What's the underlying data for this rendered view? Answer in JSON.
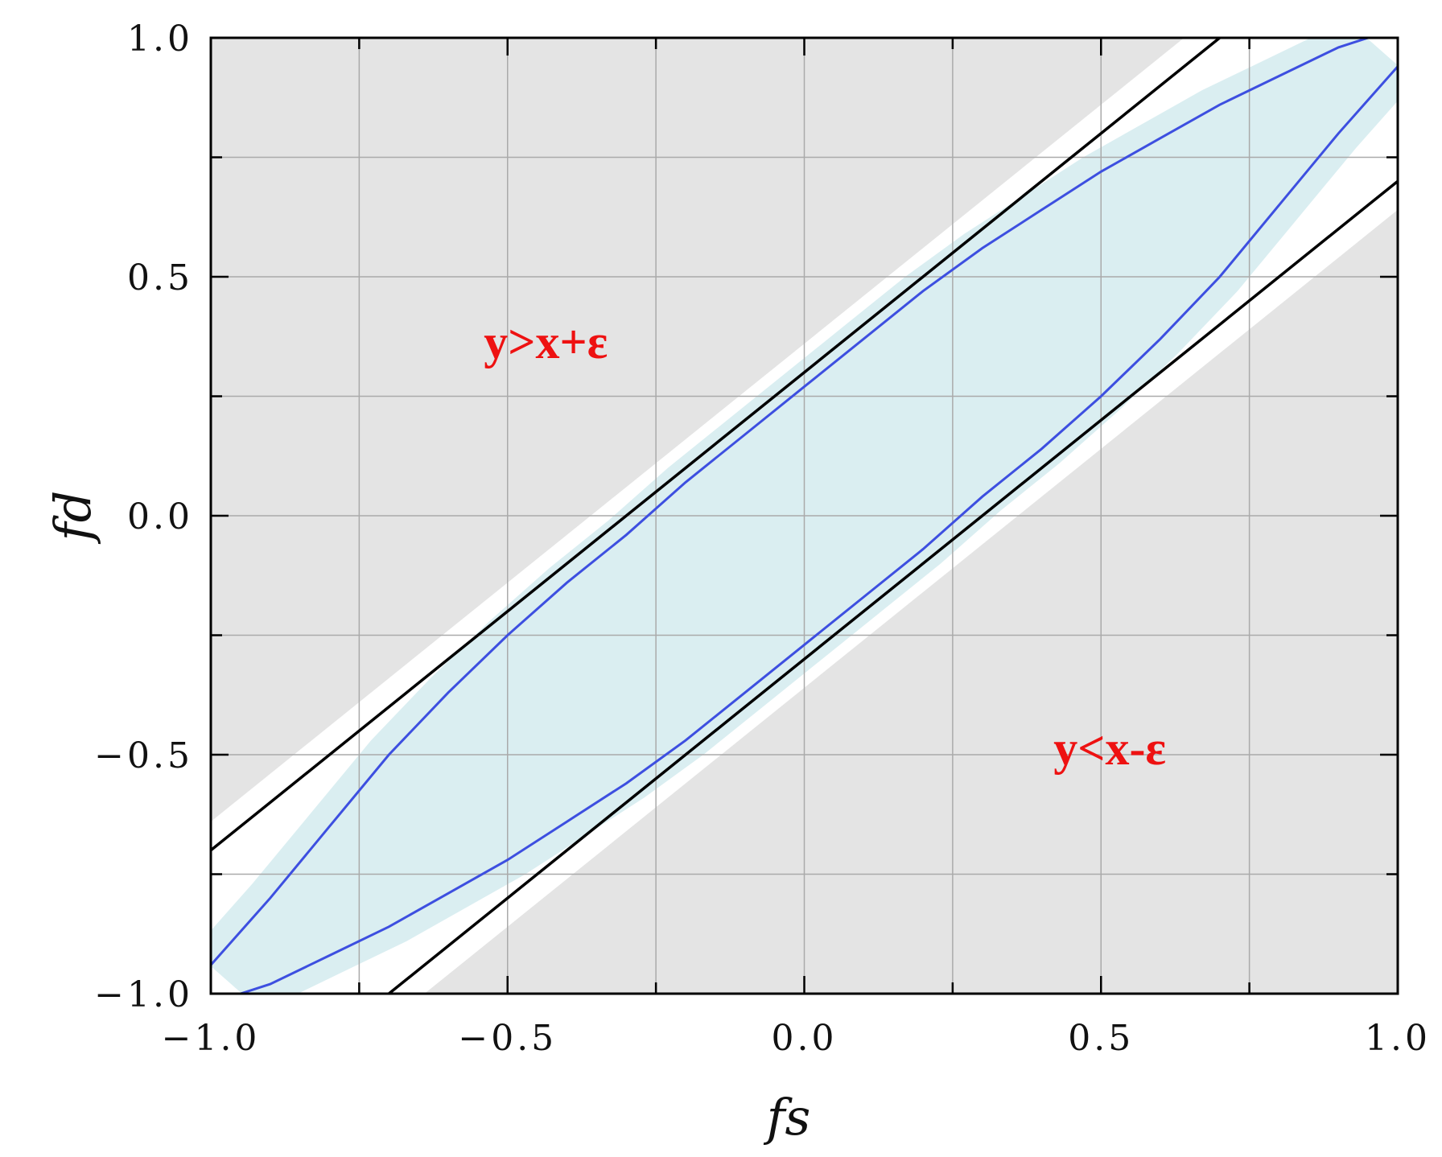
{
  "chart_data": {
    "type": "line",
    "title": "",
    "xlabel": "fs",
    "ylabel": "fd",
    "xlim": [
      -1.0,
      1.0
    ],
    "ylim": [
      -1.0,
      1.0
    ],
    "x_ticks": [
      -1.0,
      -0.5,
      0.0,
      0.5,
      1.0
    ],
    "y_ticks": [
      -1.0,
      -0.5,
      0.0,
      0.5,
      1.0
    ],
    "x_tick_labels": [
      "−1.0",
      "−0.5",
      "0.0",
      "0.5",
      "1.0"
    ],
    "y_tick_labels": [
      "−1.0",
      "−0.5",
      "0.0",
      "0.5",
      "1.0"
    ],
    "minor_grid_step": 0.25,
    "grid": true,
    "legend": "none",
    "epsilon": 0.3,
    "boundary_lines": [
      {
        "equation": "y = x + ε",
        "intercept": 0.3,
        "color": "#000000"
      },
      {
        "equation": "y = x − ε",
        "intercept": -0.3,
        "color": "#000000"
      }
    ],
    "curve": {
      "type": "closed-ellipse",
      "color": "#3d4fe0",
      "upper_branch": [
        [
          -1.0,
          -0.94
        ],
        [
          -0.9,
          -0.8
        ],
        [
          -0.8,
          -0.65
        ],
        [
          -0.7,
          -0.5
        ],
        [
          -0.6,
          -0.37
        ],
        [
          -0.5,
          -0.25
        ],
        [
          -0.4,
          -0.14
        ],
        [
          -0.3,
          -0.04
        ],
        [
          -0.2,
          0.07
        ],
        [
          -0.1,
          0.17
        ],
        [
          0.0,
          0.27
        ],
        [
          0.1,
          0.37
        ],
        [
          0.2,
          0.47
        ],
        [
          0.3,
          0.56
        ],
        [
          0.4,
          0.64
        ],
        [
          0.5,
          0.72
        ],
        [
          0.6,
          0.79
        ],
        [
          0.7,
          0.86
        ],
        [
          0.8,
          0.92
        ],
        [
          0.9,
          0.98
        ],
        [
          0.95,
          1.0
        ]
      ],
      "lower_branch": [
        [
          -0.95,
          -1.0
        ],
        [
          -0.9,
          -0.98
        ],
        [
          -0.8,
          -0.92
        ],
        [
          -0.7,
          -0.86
        ],
        [
          -0.6,
          -0.79
        ],
        [
          -0.5,
          -0.72
        ],
        [
          -0.4,
          -0.64
        ],
        [
          -0.3,
          -0.56
        ],
        [
          -0.2,
          -0.47
        ],
        [
          -0.1,
          -0.37
        ],
        [
          0.0,
          -0.27
        ],
        [
          0.1,
          -0.17
        ],
        [
          0.2,
          -0.07
        ],
        [
          0.3,
          0.04
        ],
        [
          0.4,
          0.14
        ],
        [
          0.5,
          0.25
        ],
        [
          0.6,
          0.37
        ],
        [
          0.7,
          0.5
        ],
        [
          0.8,
          0.65
        ],
        [
          0.9,
          0.8
        ],
        [
          1.0,
          0.94
        ]
      ]
    },
    "regions": [
      {
        "name": "outside",
        "color": "#e4e4e4"
      },
      {
        "name": "band",
        "color": "#ffffff"
      },
      {
        "name": "ellipse",
        "color": "#daeef1"
      }
    ],
    "annotations": [
      {
        "text": "y>x+ε",
        "x": -0.54,
        "y": 0.33,
        "color": "#ee1111"
      },
      {
        "text": "y<x-ε",
        "x": 0.42,
        "y": -0.52,
        "color": "#ee1111"
      }
    ]
  }
}
